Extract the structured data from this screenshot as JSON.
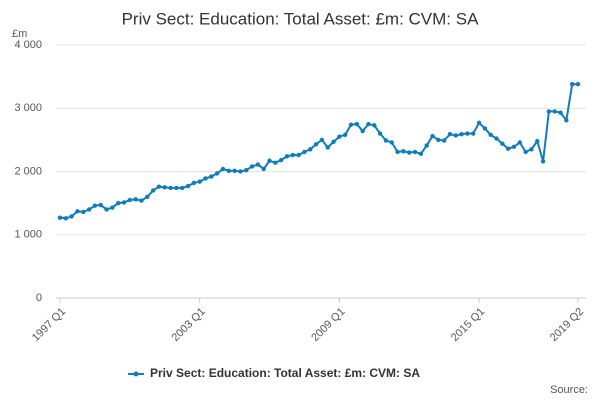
{
  "chart_data": {
    "type": "line",
    "title": "Priv Sect: Education: Total Asset: £m: CVM: SA",
    "y_label": "£m",
    "source": "Source:",
    "categories": [
      "1997 Q1",
      null,
      null,
      null,
      null,
      null,
      null,
      null,
      null,
      null,
      null,
      null,
      null,
      null,
      null,
      null,
      null,
      null,
      null,
      null,
      null,
      null,
      null,
      null,
      "2003 Q1",
      null,
      null,
      null,
      null,
      null,
      null,
      null,
      null,
      null,
      null,
      null,
      null,
      null,
      null,
      null,
      null,
      null,
      null,
      null,
      null,
      null,
      null,
      null,
      "2009 Q1",
      null,
      null,
      null,
      null,
      null,
      null,
      null,
      null,
      null,
      null,
      null,
      null,
      null,
      null,
      null,
      null,
      null,
      null,
      null,
      null,
      null,
      null,
      null,
      "2015 Q1",
      null,
      null,
      null,
      null,
      null,
      null,
      null,
      null,
      null,
      null,
      null,
      null,
      null,
      null,
      null,
      null,
      "2019 Q2"
    ],
    "series": [
      {
        "name": "Priv Sect: Education: Total Asset: £m: CVM: SA",
        "color": "#0f7dbd",
        "values": [
          1270,
          1260,
          1290,
          1370,
          1360,
          1400,
          1460,
          1470,
          1400,
          1430,
          1500,
          1510,
          1550,
          1560,
          1540,
          1600,
          1700,
          1760,
          1750,
          1740,
          1740,
          1740,
          1770,
          1820,
          1840,
          1890,
          1920,
          1970,
          2040,
          2010,
          2010,
          2000,
          2020,
          2080,
          2110,
          2040,
          2170,
          2140,
          2180,
          2240,
          2260,
          2260,
          2310,
          2350,
          2430,
          2500,
          2380,
          2470,
          2550,
          2580,
          2740,
          2750,
          2640,
          2750,
          2730,
          2600,
          2490,
          2460,
          2310,
          2320,
          2300,
          2310,
          2280,
          2410,
          2560,
          2500,
          2490,
          2590,
          2570,
          2590,
          2600,
          2600,
          2770,
          2680,
          2580,
          2520,
          2440,
          2360,
          2390,
          2460,
          2310,
          2350,
          2480,
          2160,
          2950,
          2950,
          2930,
          2810,
          3380,
          3380
        ]
      }
    ],
    "ylim": [
      0,
      4000
    ],
    "yticks": [
      0,
      {
        "value": 1000,
        "label": "1 000"
      },
      {
        "value": 2000,
        "label": "2 000"
      },
      {
        "value": 3000,
        "label": "3 000"
      },
      {
        "value": 4000,
        "label": "4 000"
      }
    ],
    "grid": true
  }
}
